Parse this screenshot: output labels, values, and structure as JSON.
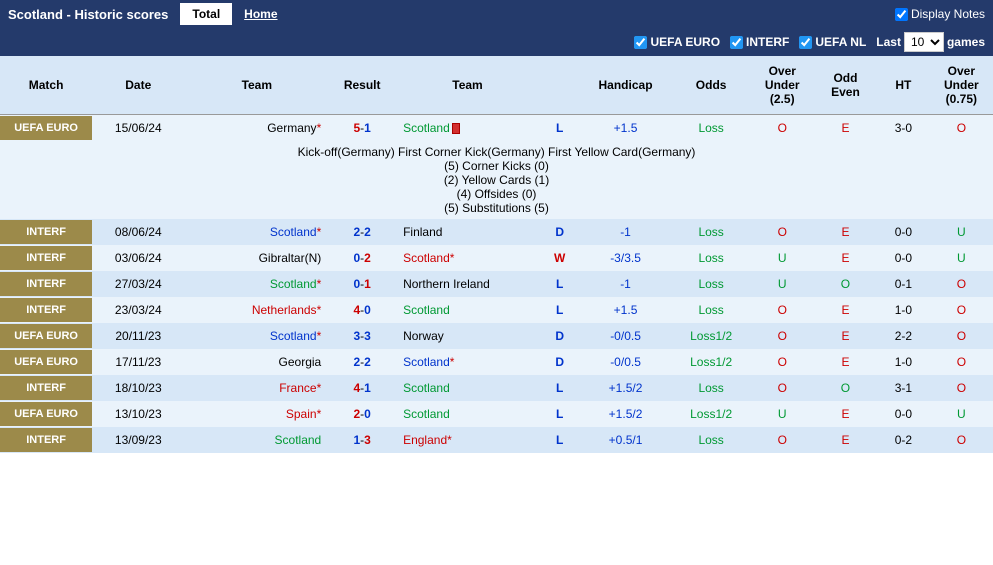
{
  "header": {
    "title": "Scotland - Historic scores",
    "tabs": [
      {
        "label": "Total",
        "active": true
      },
      {
        "label": "Home",
        "active": false
      }
    ],
    "displayNotes": "Display Notes"
  },
  "filters": {
    "comp1": "UEFA EURO",
    "comp2": "INTERF",
    "comp3": "UEFA NL",
    "lastLabel": "Last",
    "lastValue": "10",
    "gamesLabel": "games"
  },
  "columns": {
    "match": "Match",
    "date": "Date",
    "team1": "Team",
    "result": "Result",
    "team2": "Team",
    "handicap": "Handicap",
    "odds": "Odds",
    "overUnder25": "Over Under (2.5)",
    "oddEven": "Odd Even",
    "ht": "HT",
    "overUnder075": "Over Under (0.75)"
  },
  "rows": [
    {
      "match": "UEFA EURO",
      "date": "15/06/24",
      "team1": "Germany",
      "t1star": "*",
      "t1class": "text-black",
      "score1": "5",
      "score2": "1",
      "s1class": "score-red",
      "s2class": "score-blue",
      "team2": "Scotland",
      "t2star": "",
      "t2class": "link-green",
      "redcard": true,
      "wld": "L",
      "wldclass": "result-l",
      "hcap": "+1.5",
      "hcapclass": "text-blue",
      "odds": "Loss",
      "oddsclass": "odds-green",
      "ou25": "O",
      "ou25class": "text-red",
      "oe": "E",
      "oeclass": "text-red",
      "ht": "3-0",
      "ou075": "O",
      "ou075class": "text-red",
      "rowclass": "row-even",
      "notes": [
        "Kick-off(Germany)   First Corner Kick(Germany)   First Yellow Card(Germany)",
        "(5) Corner Kicks (0)",
        "(2) Yellow Cards (1)",
        "(4) Offsides (0)",
        "(5) Substitutions (5)"
      ]
    },
    {
      "match": "INTERF",
      "date": "08/06/24",
      "team1": "Scotland",
      "t1star": "*",
      "t1class": "link-blue",
      "score1": "2",
      "score2": "2",
      "s1class": "score-blue",
      "s2class": "score-blue",
      "team2": "Finland",
      "t2star": "",
      "t2class": "text-black",
      "wld": "D",
      "wldclass": "result-d",
      "hcap": "-1",
      "hcapclass": "text-blue",
      "odds": "Loss",
      "oddsclass": "odds-green",
      "ou25": "O",
      "ou25class": "text-red",
      "oe": "E",
      "oeclass": "text-red",
      "ht": "0-0",
      "ou075": "U",
      "ou075class": "text-green",
      "rowclass": "row-odd"
    },
    {
      "match": "INTERF",
      "date": "03/06/24",
      "team1": "Gibraltar(N)",
      "t1star": "",
      "t1class": "text-black",
      "score1": "0",
      "score2": "2",
      "s1class": "score-blue",
      "s2class": "score-red",
      "team2": "Scotland",
      "t2star": "*",
      "t2class": "link-red",
      "wld": "W",
      "wldclass": "result-w",
      "hcap": "-3/3.5",
      "hcapclass": "text-blue",
      "odds": "Loss",
      "oddsclass": "odds-green",
      "ou25": "U",
      "ou25class": "text-green",
      "oe": "E",
      "oeclass": "text-red",
      "ht": "0-0",
      "ou075": "U",
      "ou075class": "text-green",
      "rowclass": "row-even"
    },
    {
      "match": "INTERF",
      "date": "27/03/24",
      "team1": "Scotland",
      "t1star": "*",
      "t1class": "link-green",
      "score1": "0",
      "score2": "1",
      "s1class": "score-blue",
      "s2class": "score-red",
      "team2": "Northern Ireland",
      "t2star": "",
      "t2class": "text-black",
      "wld": "L",
      "wldclass": "result-l",
      "hcap": "-1",
      "hcapclass": "text-blue",
      "odds": "Loss",
      "oddsclass": "odds-green",
      "ou25": "U",
      "ou25class": "text-green",
      "oe": "O",
      "oeclass": "text-green",
      "ht": "0-1",
      "ou075": "O",
      "ou075class": "text-red",
      "rowclass": "row-odd"
    },
    {
      "match": "INTERF",
      "date": "23/03/24",
      "team1": "Netherlands",
      "t1star": "*",
      "t1class": "link-red",
      "score1": "4",
      "score2": "0",
      "s1class": "score-red",
      "s2class": "score-blue",
      "team2": "Scotland",
      "t2star": "",
      "t2class": "link-green",
      "wld": "L",
      "wldclass": "result-l",
      "hcap": "+1.5",
      "hcapclass": "text-blue",
      "odds": "Loss",
      "oddsclass": "odds-green",
      "ou25": "O",
      "ou25class": "text-red",
      "oe": "E",
      "oeclass": "text-red",
      "ht": "1-0",
      "ou075": "O",
      "ou075class": "text-red",
      "rowclass": "row-even"
    },
    {
      "match": "UEFA EURO",
      "date": "20/11/23",
      "team1": "Scotland",
      "t1star": "*",
      "t1class": "link-blue",
      "score1": "3",
      "score2": "3",
      "s1class": "score-blue",
      "s2class": "score-blue",
      "team2": "Norway",
      "t2star": "",
      "t2class": "text-black",
      "wld": "D",
      "wldclass": "result-d",
      "hcap": "-0/0.5",
      "hcapclass": "text-blue",
      "odds": "Loss1/2",
      "oddsclass": "odds-green",
      "ou25": "O",
      "ou25class": "text-red",
      "oe": "E",
      "oeclass": "text-red",
      "ht": "2-2",
      "ou075": "O",
      "ou075class": "text-red",
      "rowclass": "row-odd"
    },
    {
      "match": "UEFA EURO",
      "date": "17/11/23",
      "team1": "Georgia",
      "t1star": "",
      "t1class": "text-black",
      "score1": "2",
      "score2": "2",
      "s1class": "score-blue",
      "s2class": "score-blue",
      "team2": "Scotland",
      "t2star": "*",
      "t2class": "link-blue",
      "wld": "D",
      "wldclass": "result-d",
      "hcap": "-0/0.5",
      "hcapclass": "text-blue",
      "odds": "Loss1/2",
      "oddsclass": "odds-green",
      "ou25": "O",
      "ou25class": "text-red",
      "oe": "E",
      "oeclass": "text-red",
      "ht": "1-0",
      "ou075": "O",
      "ou075class": "text-red",
      "rowclass": "row-even"
    },
    {
      "match": "INTERF",
      "date": "18/10/23",
      "team1": "France",
      "t1star": "*",
      "t1class": "link-red",
      "score1": "4",
      "score2": "1",
      "s1class": "score-red",
      "s2class": "score-blue",
      "team2": "Scotland",
      "t2star": "",
      "t2class": "link-green",
      "wld": "L",
      "wldclass": "result-l",
      "hcap": "+1.5/2",
      "hcapclass": "text-blue",
      "odds": "Loss",
      "oddsclass": "odds-green",
      "ou25": "O",
      "ou25class": "text-red",
      "oe": "O",
      "oeclass": "text-green",
      "ht": "3-1",
      "ou075": "O",
      "ou075class": "text-red",
      "rowclass": "row-odd"
    },
    {
      "match": "UEFA EURO",
      "date": "13/10/23",
      "team1": "Spain",
      "t1star": "*",
      "t1class": "link-red",
      "score1": "2",
      "score2": "0",
      "s1class": "score-red",
      "s2class": "score-blue",
      "team2": "Scotland",
      "t2star": "",
      "t2class": "link-green",
      "wld": "L",
      "wldclass": "result-l",
      "hcap": "+1.5/2",
      "hcapclass": "text-blue",
      "odds": "Loss1/2",
      "oddsclass": "odds-green",
      "ou25": "U",
      "ou25class": "text-green",
      "oe": "E",
      "oeclass": "text-red",
      "ht": "0-0",
      "ou075": "U",
      "ou075class": "text-green",
      "rowclass": "row-even"
    },
    {
      "match": "INTERF",
      "date": "13/09/23",
      "team1": "Scotland",
      "t1star": "",
      "t1class": "link-green",
      "score1": "1",
      "score2": "3",
      "s1class": "score-blue",
      "s2class": "score-red",
      "team2": "England",
      "t2star": "*",
      "t2class": "link-red",
      "wld": "L",
      "wldclass": "result-l",
      "hcap": "+0.5/1",
      "hcapclass": "text-blue",
      "odds": "Loss",
      "oddsclass": "odds-green",
      "ou25": "O",
      "ou25class": "text-red",
      "oe": "E",
      "oeclass": "text-red",
      "ht": "0-2",
      "ou075": "O",
      "ou075class": "text-red",
      "rowclass": "row-odd"
    }
  ]
}
